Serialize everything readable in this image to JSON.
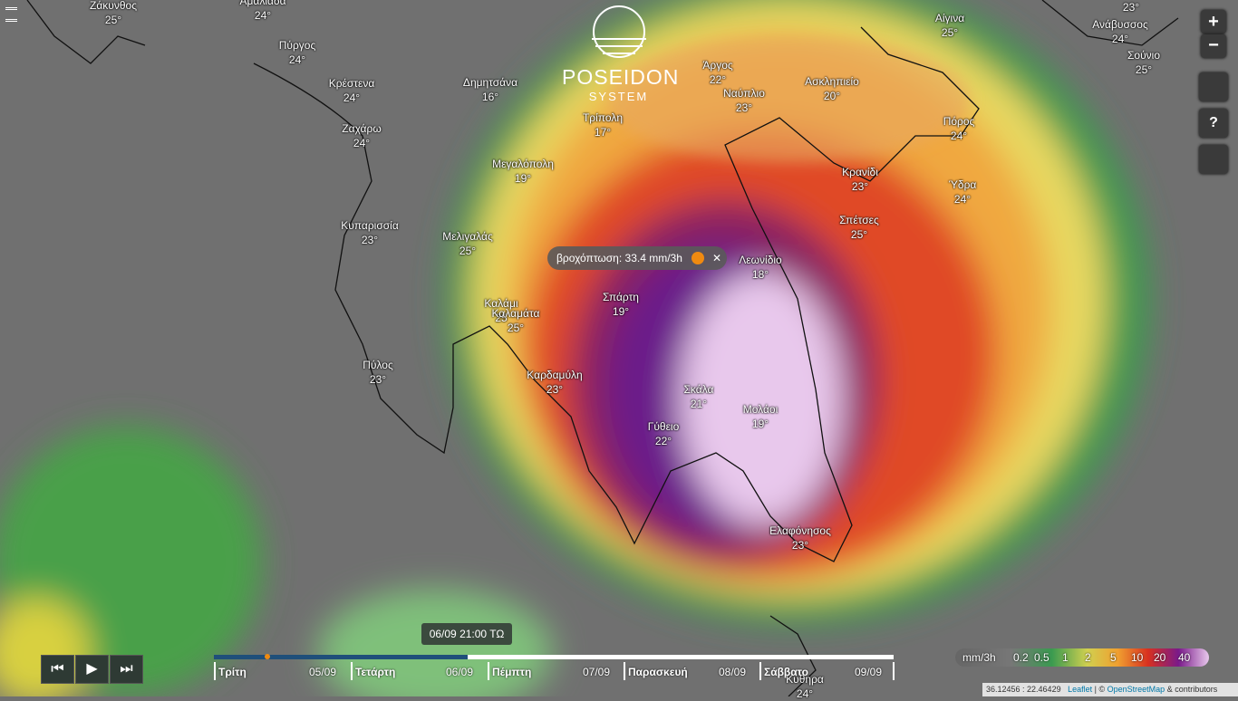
{
  "logo": {
    "title": "POSEIDON",
    "subtitle": "SYSTEM"
  },
  "popup": {
    "text": "βροχόπτωση: 33.4 mm/3h",
    "close": "✕"
  },
  "places": [
    {
      "name": "Ζάκυνθος",
      "temp": "25°"
    },
    {
      "name": "Αμαλιάδα",
      "temp": "24°"
    },
    {
      "name": "Πύργος",
      "temp": "24°"
    },
    {
      "name": "Κρέστενα",
      "temp": "24°"
    },
    {
      "name": "Ζαχάρω",
      "temp": "24°"
    },
    {
      "name": "Κυπαρισσία",
      "temp": "23°"
    },
    {
      "name": "Μελιγαλάς",
      "temp": "25°"
    },
    {
      "name": "Καλάμι",
      "temp": "25"
    },
    {
      "name": "Καλαμάτα",
      "temp": "25°"
    },
    {
      "name": "Πύλος",
      "temp": "23°"
    },
    {
      "name": "Καρδαμύλη",
      "temp": "23°"
    },
    {
      "name": "Δημητσάνα",
      "temp": "16°"
    },
    {
      "name": "Μεγαλόπολη",
      "temp": "19°"
    },
    {
      "name": "Τρίπολη",
      "temp": "17°"
    },
    {
      "name": "Άργος",
      "temp": "22°"
    },
    {
      "name": "Ναύπλιο",
      "temp": "23°"
    },
    {
      "name": "Ασκληπιείο",
      "temp": "20°"
    },
    {
      "name": "Αίγινα",
      "temp": "25°"
    },
    {
      "name": "Ανάβυσσος",
      "temp": "24°"
    },
    {
      "name": "Σούνιο",
      "temp": "25°"
    },
    {
      "name": "Πόρος",
      "temp": "24°"
    },
    {
      "name": "Κρανίδι",
      "temp": "23°"
    },
    {
      "name": "Ύδρα",
      "temp": "24°"
    },
    {
      "name": "Σπέτσες",
      "temp": "25°"
    },
    {
      "name": "Λεωνίδιο",
      "temp": "18°"
    },
    {
      "name": "Σπάρτη",
      "temp": "19°"
    },
    {
      "name": "Σκάλα",
      "temp": "21°"
    },
    {
      "name": "Μολάοι",
      "temp": "19°"
    },
    {
      "name": "Γύθειο",
      "temp": "22°"
    },
    {
      "name": "Ελαφόνησος",
      "temp": "23°"
    },
    {
      "name": "Κύθηρα",
      "temp": "24°"
    }
  ],
  "corner_temp": "23°",
  "controls": {
    "zoom_in": "+",
    "zoom_out": "−",
    "help": "?"
  },
  "timeline": {
    "current": "06/09 21:00 ΤΩ",
    "days": [
      {
        "day": "Τρίτη",
        "date": "05/09"
      },
      {
        "day": "Τετάρτη",
        "date": "06/09"
      },
      {
        "day": "Πέμπτη",
        "date": "07/09"
      },
      {
        "day": "Παρασκευή",
        "date": "08/09"
      },
      {
        "day": "Σάββατο",
        "date": "09/09"
      }
    ]
  },
  "legend": {
    "unit": "mm/3h",
    "labels": [
      "0.2",
      "0.5",
      "1",
      "2",
      "5",
      "10",
      "20",
      "40"
    ]
  },
  "attribution": {
    "coords": "36.12456 : 22.46429",
    "leaflet": "Leaflet",
    "sep": "| ©",
    "osm": "OpenStreetMap",
    "contrib": "& contributors"
  }
}
